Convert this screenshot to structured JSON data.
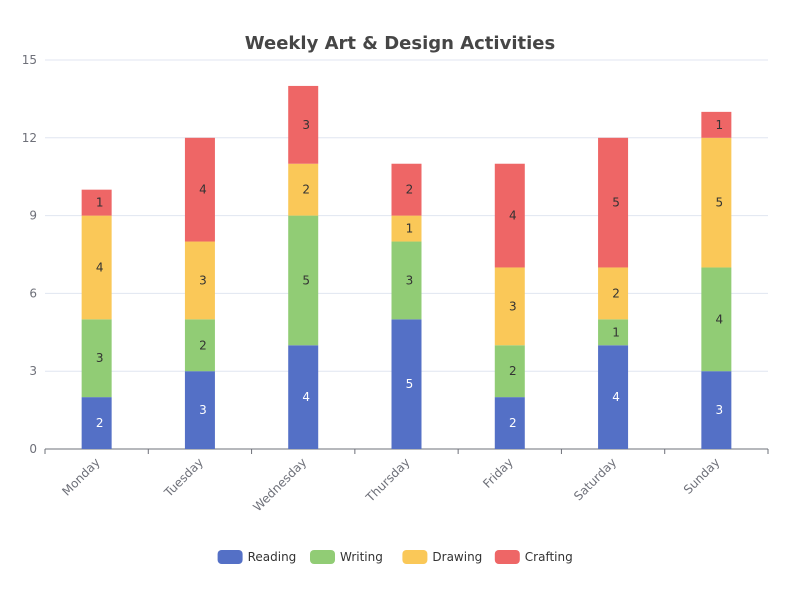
{
  "chart_data": {
    "type": "bar",
    "stacked": true,
    "title": "Weekly Art & Design Activities",
    "categories": [
      "Monday",
      "Tuesday",
      "Wednesday",
      "Thursday",
      "Friday",
      "Saturday",
      "Sunday"
    ],
    "series": [
      {
        "name": "Reading",
        "color": "#5470c6",
        "label_color": "#ffffff",
        "values": [
          2,
          3,
          4,
          5,
          2,
          4,
          3
        ]
      },
      {
        "name": "Writing",
        "color": "#91cc75",
        "label_color": "#333333",
        "values": [
          3,
          2,
          5,
          3,
          2,
          1,
          4
        ]
      },
      {
        "name": "Drawing",
        "color": "#fac858",
        "label_color": "#333333",
        "values": [
          4,
          3,
          2,
          1,
          3,
          2,
          5
        ]
      },
      {
        "name": "Crafting",
        "color": "#ee6666",
        "label_color": "#333333",
        "values": [
          1,
          4,
          3,
          2,
          4,
          5,
          1
        ]
      }
    ],
    "ylim": [
      0,
      15
    ],
    "yticks": [
      0,
      3,
      6,
      9,
      12,
      15
    ],
    "grid": true,
    "legend_position": "bottom-center",
    "xlabel": "",
    "ylabel": ""
  }
}
